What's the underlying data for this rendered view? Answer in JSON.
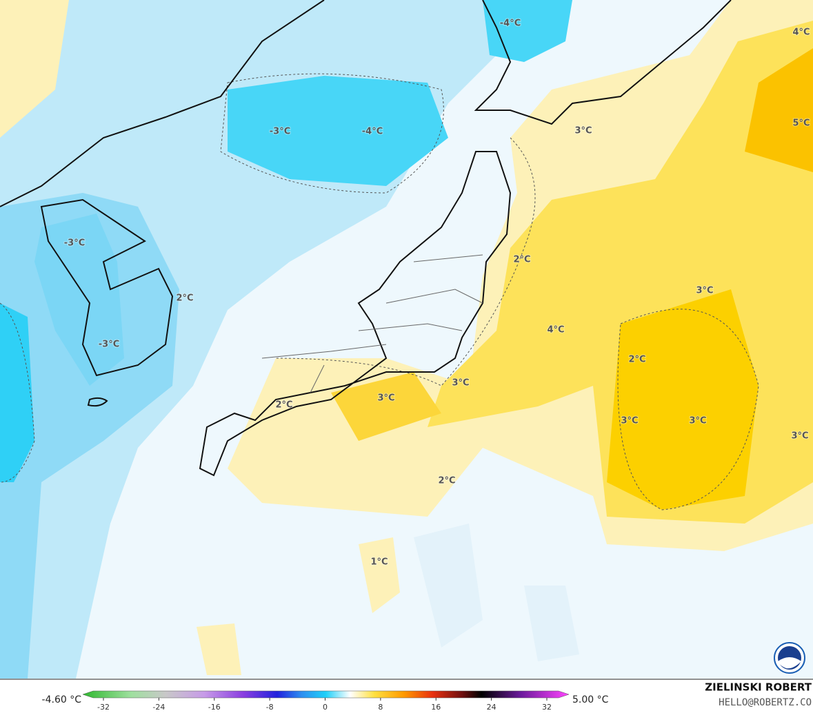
{
  "map": {
    "labels": [
      "-4°C",
      "4°C",
      "-3°C",
      "-4°C",
      "3°C",
      "5°C",
      "-3°C",
      "2°C",
      "2°C",
      "-3°C",
      "3°C",
      "4°C",
      "2°C",
      "3°C",
      "2°C",
      "3°C",
      "3°C",
      "3°C",
      "3°C",
      "2°C",
      "1°C"
    ],
    "colorbar": {
      "min_label": "-4.60 °C",
      "max_label": "5.00 °C",
      "ticks": [
        -32,
        -24,
        -16,
        -8,
        0,
        8,
        16,
        24,
        32
      ]
    },
    "credit": {
      "name": "ZIELINSKI ROBERT",
      "email": "HELLO@ROBERTZ.CO"
    }
  }
}
